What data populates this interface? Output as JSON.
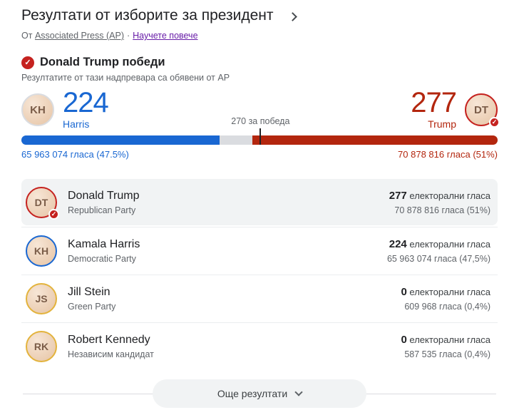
{
  "header": {
    "title": "Резултати от изборите за президент",
    "byline_prefix": "От",
    "source_link": "Associated Press (AP)",
    "separator": "·",
    "learn_more": "Научете повече"
  },
  "winner": {
    "headline": "Donald Trump победи",
    "subtext": "Резултатите от тази надпревара са обявени от AP"
  },
  "scoreboard": {
    "harris": {
      "number": "224",
      "label": "Harris",
      "color": "#1967d2",
      "initials": "KH",
      "total": "65 963 074 гласа (47.5%)"
    },
    "trump": {
      "number": "277",
      "label": "Trump",
      "color": "#b3260e",
      "initials": "DT",
      "total": "70 878 816 гласа (51%)"
    },
    "threshold_label": "270 за победа",
    "bar": {
      "harris_pct": 41.6,
      "undecided_pct": 6.9,
      "trump_pct": 51.5,
      "tick_pct": 50.2,
      "harris_color": "#1967d2",
      "undecided_color": "#dadce0",
      "trump_color": "#b3260e"
    }
  },
  "candidates": [
    {
      "name": "Donald Trump",
      "party": "Republican Party",
      "electoral_votes": "277",
      "electoral_label": "електорални гласа",
      "popular": "70 878 816 гласа (51%)",
      "initials": "DT",
      "ring_color": "#c5221f",
      "winner": true
    },
    {
      "name": "Kamala Harris",
      "party": "Democratic Party",
      "electoral_votes": "224",
      "electoral_label": "електорални гласа",
      "popular": "65 963 074 гласа (47,5%)",
      "initials": "KH",
      "ring_color": "#1967d2",
      "winner": false
    },
    {
      "name": "Jill Stein",
      "party": "Green Party",
      "electoral_votes": "0",
      "electoral_label": "електорални гласа",
      "popular": "609 968 гласа (0,4%)",
      "initials": "JS",
      "ring_color": "#e3b33c",
      "winner": false
    },
    {
      "name": "Robert Kennedy",
      "party": "Независим кандидат",
      "electoral_votes": "0",
      "electoral_label": "електорални гласа",
      "popular": "587 535 гласа (0,4%)",
      "initials": "RK",
      "ring_color": "#e3b33c",
      "winner": false
    }
  ],
  "footer": {
    "more_button": "Още резултати"
  },
  "colors": {
    "accent_blue": "#1967d2",
    "accent_red": "#b3260e",
    "badge_red": "#c5221f",
    "link_purple": "#681da8",
    "text_primary": "#202124",
    "text_secondary": "#5f6368",
    "highlight_row_bg": "#f1f3f4"
  }
}
